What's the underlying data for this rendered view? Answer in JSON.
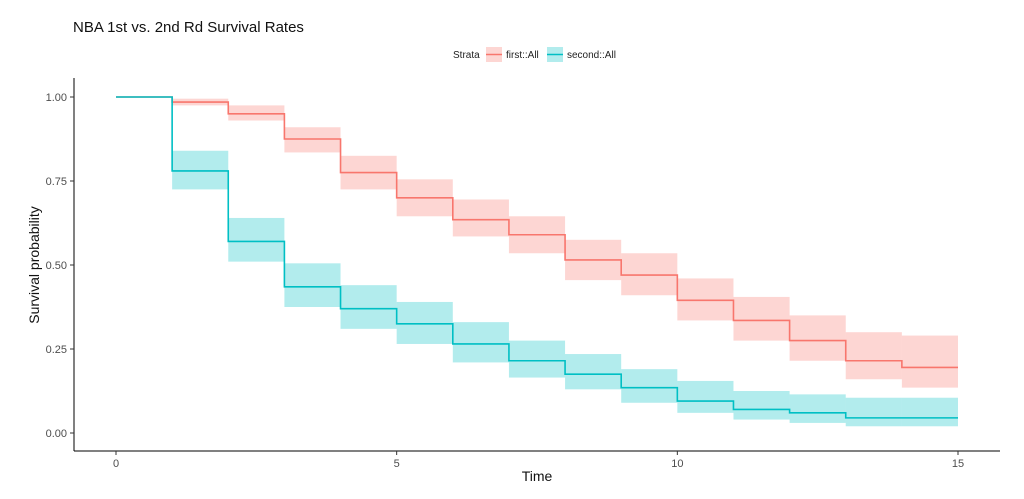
{
  "chart_data": {
    "type": "line",
    "title": "NBA 1st vs. 2nd Rd Survival Rates",
    "xlabel": "Time",
    "ylabel": "Survival probability",
    "xlim": [
      0,
      15
    ],
    "ylim": [
      0,
      1
    ],
    "x_ticks": [
      "0",
      "5",
      "10",
      "15"
    ],
    "y_ticks": [
      "0.00",
      "0.25",
      "0.50",
      "0.75",
      "1.00"
    ],
    "legend": {
      "title": "Strata",
      "placement": "top"
    },
    "grid": false,
    "step": true,
    "confidence_bands": true,
    "x": [
      0,
      1,
      2,
      3,
      4,
      5,
      6,
      7,
      8,
      9,
      10,
      11,
      12,
      13,
      14,
      15
    ],
    "series": [
      {
        "name": "first::All",
        "color": "#F8766D",
        "band_color": "#F8766D",
        "values": [
          1.0,
          0.985,
          0.95,
          0.875,
          0.775,
          0.7,
          0.635,
          0.59,
          0.515,
          0.47,
          0.395,
          0.335,
          0.275,
          0.215,
          0.195,
          0.195
        ],
        "lower": [
          1.0,
          0.975,
          0.93,
          0.835,
          0.725,
          0.645,
          0.585,
          0.535,
          0.455,
          0.41,
          0.335,
          0.275,
          0.215,
          0.16,
          0.135,
          0.135
        ],
        "upper": [
          1.0,
          0.995,
          0.975,
          0.91,
          0.825,
          0.755,
          0.695,
          0.645,
          0.575,
          0.535,
          0.46,
          0.405,
          0.35,
          0.3,
          0.29,
          0.29
        ]
      },
      {
        "name": "second::All",
        "color": "#00BFC4",
        "band_color": "#00BFC4",
        "values": [
          1.0,
          0.78,
          0.57,
          0.435,
          0.37,
          0.325,
          0.265,
          0.215,
          0.175,
          0.135,
          0.095,
          0.07,
          0.06,
          0.045,
          0.045,
          0.045
        ],
        "lower": [
          1.0,
          0.725,
          0.51,
          0.375,
          0.31,
          0.265,
          0.21,
          0.165,
          0.13,
          0.09,
          0.06,
          0.04,
          0.03,
          0.02,
          0.02,
          0.02
        ],
        "upper": [
          1.0,
          0.84,
          0.64,
          0.505,
          0.44,
          0.39,
          0.33,
          0.275,
          0.235,
          0.19,
          0.155,
          0.125,
          0.115,
          0.105,
          0.105,
          0.105
        ]
      }
    ]
  }
}
